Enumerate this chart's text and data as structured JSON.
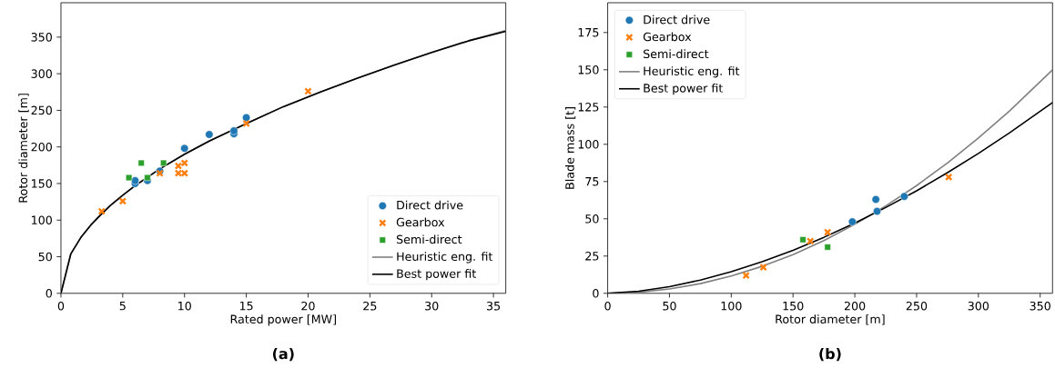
{
  "chart_data": [
    {
      "type": "scatter",
      "title": "(a)",
      "xlabel": "Rated power [MW]",
      "ylabel": "Rotor diameter [m]",
      "xlim": [
        0,
        36
      ],
      "ylim": [
        0,
        397
      ],
      "xticks": [
        0,
        5,
        10,
        15,
        20,
        25,
        30,
        35
      ],
      "yticks": [
        0,
        50,
        100,
        150,
        200,
        250,
        300,
        350
      ],
      "legend": "bottom right",
      "series": [
        {
          "name": "Direct drive",
          "marker": "circle",
          "color": "#1f77b4",
          "x": [
            6,
            6,
            7,
            8,
            10,
            12,
            14,
            14,
            15
          ],
          "values": [
            150,
            154,
            154,
            167,
            198,
            217,
            218,
            222,
            240
          ]
        },
        {
          "name": "Gearbox",
          "marker": "cross",
          "color": "#ff7f0e",
          "x": [
            3.3,
            5,
            8,
            9.5,
            9.5,
            10,
            10,
            15,
            20
          ],
          "values": [
            112,
            126,
            164,
            174,
            164,
            178,
            164,
            232,
            276
          ]
        },
        {
          "name": "Semi-direct",
          "marker": "square",
          "color": "#2ca02c",
          "x": [
            5.5,
            6.5,
            7,
            8.3
          ],
          "values": [
            158,
            178,
            158,
            178
          ]
        },
        {
          "name": "Heuristic eng. fit",
          "type": "line",
          "color": "#808080",
          "x": [
            0,
            0.8,
            1.6,
            2.4,
            3.2,
            4,
            5,
            6,
            8,
            10,
            12,
            15,
            18,
            21,
            24,
            27,
            30,
            33,
            36
          ],
          "values": [
            0,
            54,
            76,
            93,
            107,
            120,
            134,
            147,
            170,
            190,
            208,
            232,
            255,
            275,
            294,
            312,
            329,
            345,
            359
          ]
        },
        {
          "name": "Best power fit",
          "type": "line",
          "color": "#000000",
          "x": [
            0,
            0.8,
            1.6,
            2.4,
            3.2,
            4,
            5,
            6,
            8,
            10,
            12,
            15,
            18,
            21,
            24,
            27,
            30,
            33,
            36
          ],
          "values": [
            0,
            54,
            76,
            93,
            107,
            120,
            134,
            147,
            170,
            190,
            208,
            232,
            255,
            275,
            294,
            312,
            329,
            345,
            358
          ]
        }
      ]
    },
    {
      "type": "scatter",
      "title": "(b)",
      "xlabel": "Rotor diameter [m]",
      "ylabel": "Blade mass [t]",
      "xlim": [
        0,
        360
      ],
      "ylim": [
        0,
        195
      ],
      "xticks": [
        0,
        50,
        100,
        150,
        200,
        250,
        300,
        350
      ],
      "yticks": [
        0,
        25,
        50,
        75,
        100,
        125,
        150,
        175
      ],
      "legend": "top left",
      "series": [
        {
          "name": "Direct drive",
          "marker": "circle",
          "color": "#1f77b4",
          "x": [
            198,
            217,
            218,
            240
          ],
          "values": [
            48,
            63,
            55,
            65
          ]
        },
        {
          "name": "Gearbox",
          "marker": "cross",
          "color": "#ff7f0e",
          "x": [
            112,
            126,
            164,
            178,
            276
          ],
          "values": [
            12,
            17.5,
            35,
            41,
            78
          ]
        },
        {
          "name": "Semi-direct",
          "marker": "square",
          "color": "#2ca02c",
          "x": [
            158,
            178
          ],
          "values": [
            36,
            31
          ]
        },
        {
          "name": "Heuristic eng. fit",
          "type": "line",
          "color": "#808080",
          "x": [
            0,
            25,
            50,
            75,
            100,
            125,
            150,
            175,
            200,
            225,
            250,
            275,
            300,
            325,
            360
          ],
          "values": [
            0,
            0.7,
            2.9,
            6.5,
            11.6,
            18.1,
            26,
            35.4,
            46.3,
            58.6,
            72.3,
            87.5,
            104.2,
            122.2,
            150
          ]
        },
        {
          "name": "Best power fit",
          "type": "line",
          "color": "#000000",
          "x": [
            0,
            25,
            50,
            75,
            100,
            125,
            150,
            175,
            200,
            225,
            250,
            275,
            300,
            325,
            360
          ],
          "values": [
            0,
            1.4,
            4.5,
            8.9,
            14.5,
            21.2,
            28.9,
            37.6,
            47.1,
            57.6,
            68.8,
            81,
            93.9,
            107.6,
            128
          ]
        }
      ]
    }
  ]
}
